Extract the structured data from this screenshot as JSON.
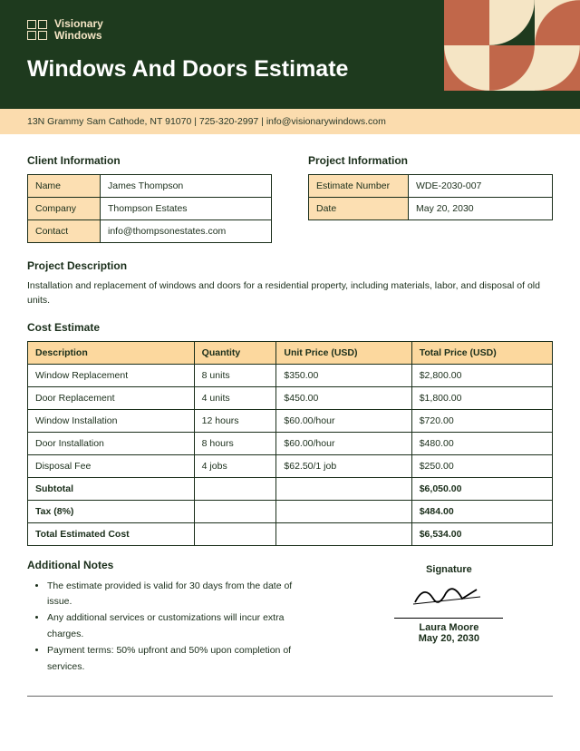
{
  "header": {
    "company_line1": "Visionary",
    "company_line2": "Windows",
    "title": "Windows And Doors Estimate",
    "contact": "13N Grammy Sam Cathode, NT 91070 |  725-320-2997 | info@visionarywindows.com",
    "colors": {
      "bg": "#1e3a1e",
      "accent": "#fbdcae",
      "deco_terra": "#c1674a",
      "deco_cream": "#f5e5c5"
    }
  },
  "client": {
    "heading": "Client Information",
    "name_label": "Name",
    "name": "James Thompson",
    "company_label": "Company",
    "company": "Thompson Estates",
    "contact_label": "Contact",
    "contact": "info@thompsonestates.com"
  },
  "project": {
    "heading": "Project Information",
    "num_label": "Estimate Number",
    "num": "WDE-2030-007",
    "date_label": "Date",
    "date": "May 20, 2030"
  },
  "description": {
    "heading": "Project Description",
    "text": "Installation and replacement of windows and doors for a residential property, including materials, labor, and disposal of old units."
  },
  "cost": {
    "heading": "Cost Estimate",
    "columns": [
      "Description",
      "Quantity",
      "Unit Price (USD)",
      "Total Price (USD)"
    ],
    "rows": [
      [
        "Window Replacement",
        "8 units",
        "$350.00",
        "$2,800.00"
      ],
      [
        "Door Replacement",
        "4 units",
        "$450.00",
        "$1,800.00"
      ],
      [
        "Window Installation",
        "12 hours",
        "$60.00/hour",
        "$720.00"
      ],
      [
        "Door Installation",
        "8 hours",
        "$60.00/hour",
        "$480.00"
      ],
      [
        "Disposal Fee",
        "4 jobs",
        "$62.50/1 job",
        "$250.00"
      ]
    ],
    "subtotal_label": "Subtotal",
    "subtotal": "$6,050.00",
    "tax_label": "Tax (8%)",
    "tax": "$484.00",
    "total_label": "Total Estimated Cost",
    "total": "$6,534.00"
  },
  "notes": {
    "heading": "Additional Notes",
    "items": [
      "The estimate provided is valid for 30 days from the date of issue.",
      "Any additional services or customizations will incur extra charges.",
      "Payment terms: 50% upfront and 50% upon completion of services."
    ]
  },
  "signature": {
    "label": "Signature",
    "name": "Laura Moore",
    "date": "May 20, 2030"
  }
}
